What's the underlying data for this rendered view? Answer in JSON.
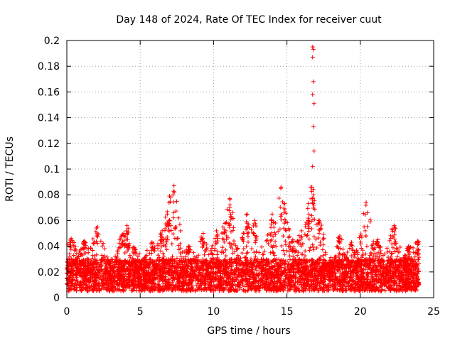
{
  "chart_data": {
    "type": "scatter",
    "title": "Day 148 of 2024, Rate Of TEC Index for receiver cuut",
    "xlabel": "GPS time / hours",
    "ylabel": "ROTI / TECUs",
    "xlim": [
      0,
      25
    ],
    "ylim": [
      0,
      0.2
    ],
    "xticks": [
      0,
      5,
      10,
      15,
      20,
      25
    ],
    "xtick_labels": [
      "0",
      "5",
      "10",
      "15",
      "20",
      "25"
    ],
    "yticks": [
      0,
      0.02,
      0.04,
      0.06,
      0.08,
      0.1,
      0.12,
      0.14,
      0.16,
      0.18,
      0.2
    ],
    "ytick_labels": [
      "0",
      "0.02",
      "0.04",
      "0.06",
      "0.08",
      "0.1",
      "0.12",
      "0.14",
      "0.16",
      "0.18",
      "0.2"
    ],
    "grid": true,
    "marker": "+",
    "series": [
      {
        "name": "ROTI",
        "color": "#ff0000",
        "baseline_band": {
          "x_range": [
            0,
            24
          ],
          "y_range": [
            0.005,
            0.03
          ]
        },
        "peaks": [
          {
            "x": 0.3,
            "y": 0.046
          },
          {
            "x": 1.2,
            "y": 0.044
          },
          {
            "x": 2.1,
            "y": 0.055
          },
          {
            "x": 3.8,
            "y": 0.049
          },
          {
            "x": 4.1,
            "y": 0.056
          },
          {
            "x": 4.6,
            "y": 0.039
          },
          {
            "x": 5.8,
            "y": 0.043
          },
          {
            "x": 6.5,
            "y": 0.052
          },
          {
            "x": 7.0,
            "y": 0.079
          },
          {
            "x": 7.3,
            "y": 0.087
          },
          {
            "x": 8.3,
            "y": 0.04
          },
          {
            "x": 9.3,
            "y": 0.05
          },
          {
            "x": 10.2,
            "y": 0.052
          },
          {
            "x": 10.8,
            "y": 0.058
          },
          {
            "x": 11.1,
            "y": 0.077
          },
          {
            "x": 12.3,
            "y": 0.065
          },
          {
            "x": 12.8,
            "y": 0.06
          },
          {
            "x": 14.0,
            "y": 0.065
          },
          {
            "x": 14.6,
            "y": 0.086
          },
          {
            "x": 14.8,
            "y": 0.073
          },
          {
            "x": 15.4,
            "y": 0.045
          },
          {
            "x": 16.0,
            "y": 0.052
          },
          {
            "x": 16.5,
            "y": 0.065
          },
          {
            "x": 16.7,
            "y": 0.086
          },
          {
            "x": 16.8,
            "y": 0.08
          },
          {
            "x": 17.2,
            "y": 0.06
          },
          {
            "x": 18.6,
            "y": 0.048
          },
          {
            "x": 19.4,
            "y": 0.043
          },
          {
            "x": 20.4,
            "y": 0.074
          },
          {
            "x": 21.2,
            "y": 0.045
          },
          {
            "x": 22.3,
            "y": 0.056
          },
          {
            "x": 23.3,
            "y": 0.04
          },
          {
            "x": 23.9,
            "y": 0.044
          }
        ],
        "outliers": [
          {
            "x": 16.75,
            "y": 0.195
          },
          {
            "x": 16.8,
            "y": 0.193
          },
          {
            "x": 16.75,
            "y": 0.187
          },
          {
            "x": 16.8,
            "y": 0.168
          },
          {
            "x": 16.75,
            "y": 0.158
          },
          {
            "x": 16.85,
            "y": 0.151
          },
          {
            "x": 16.8,
            "y": 0.133
          },
          {
            "x": 16.85,
            "y": 0.114
          },
          {
            "x": 16.75,
            "y": 0.102
          }
        ]
      }
    ]
  }
}
